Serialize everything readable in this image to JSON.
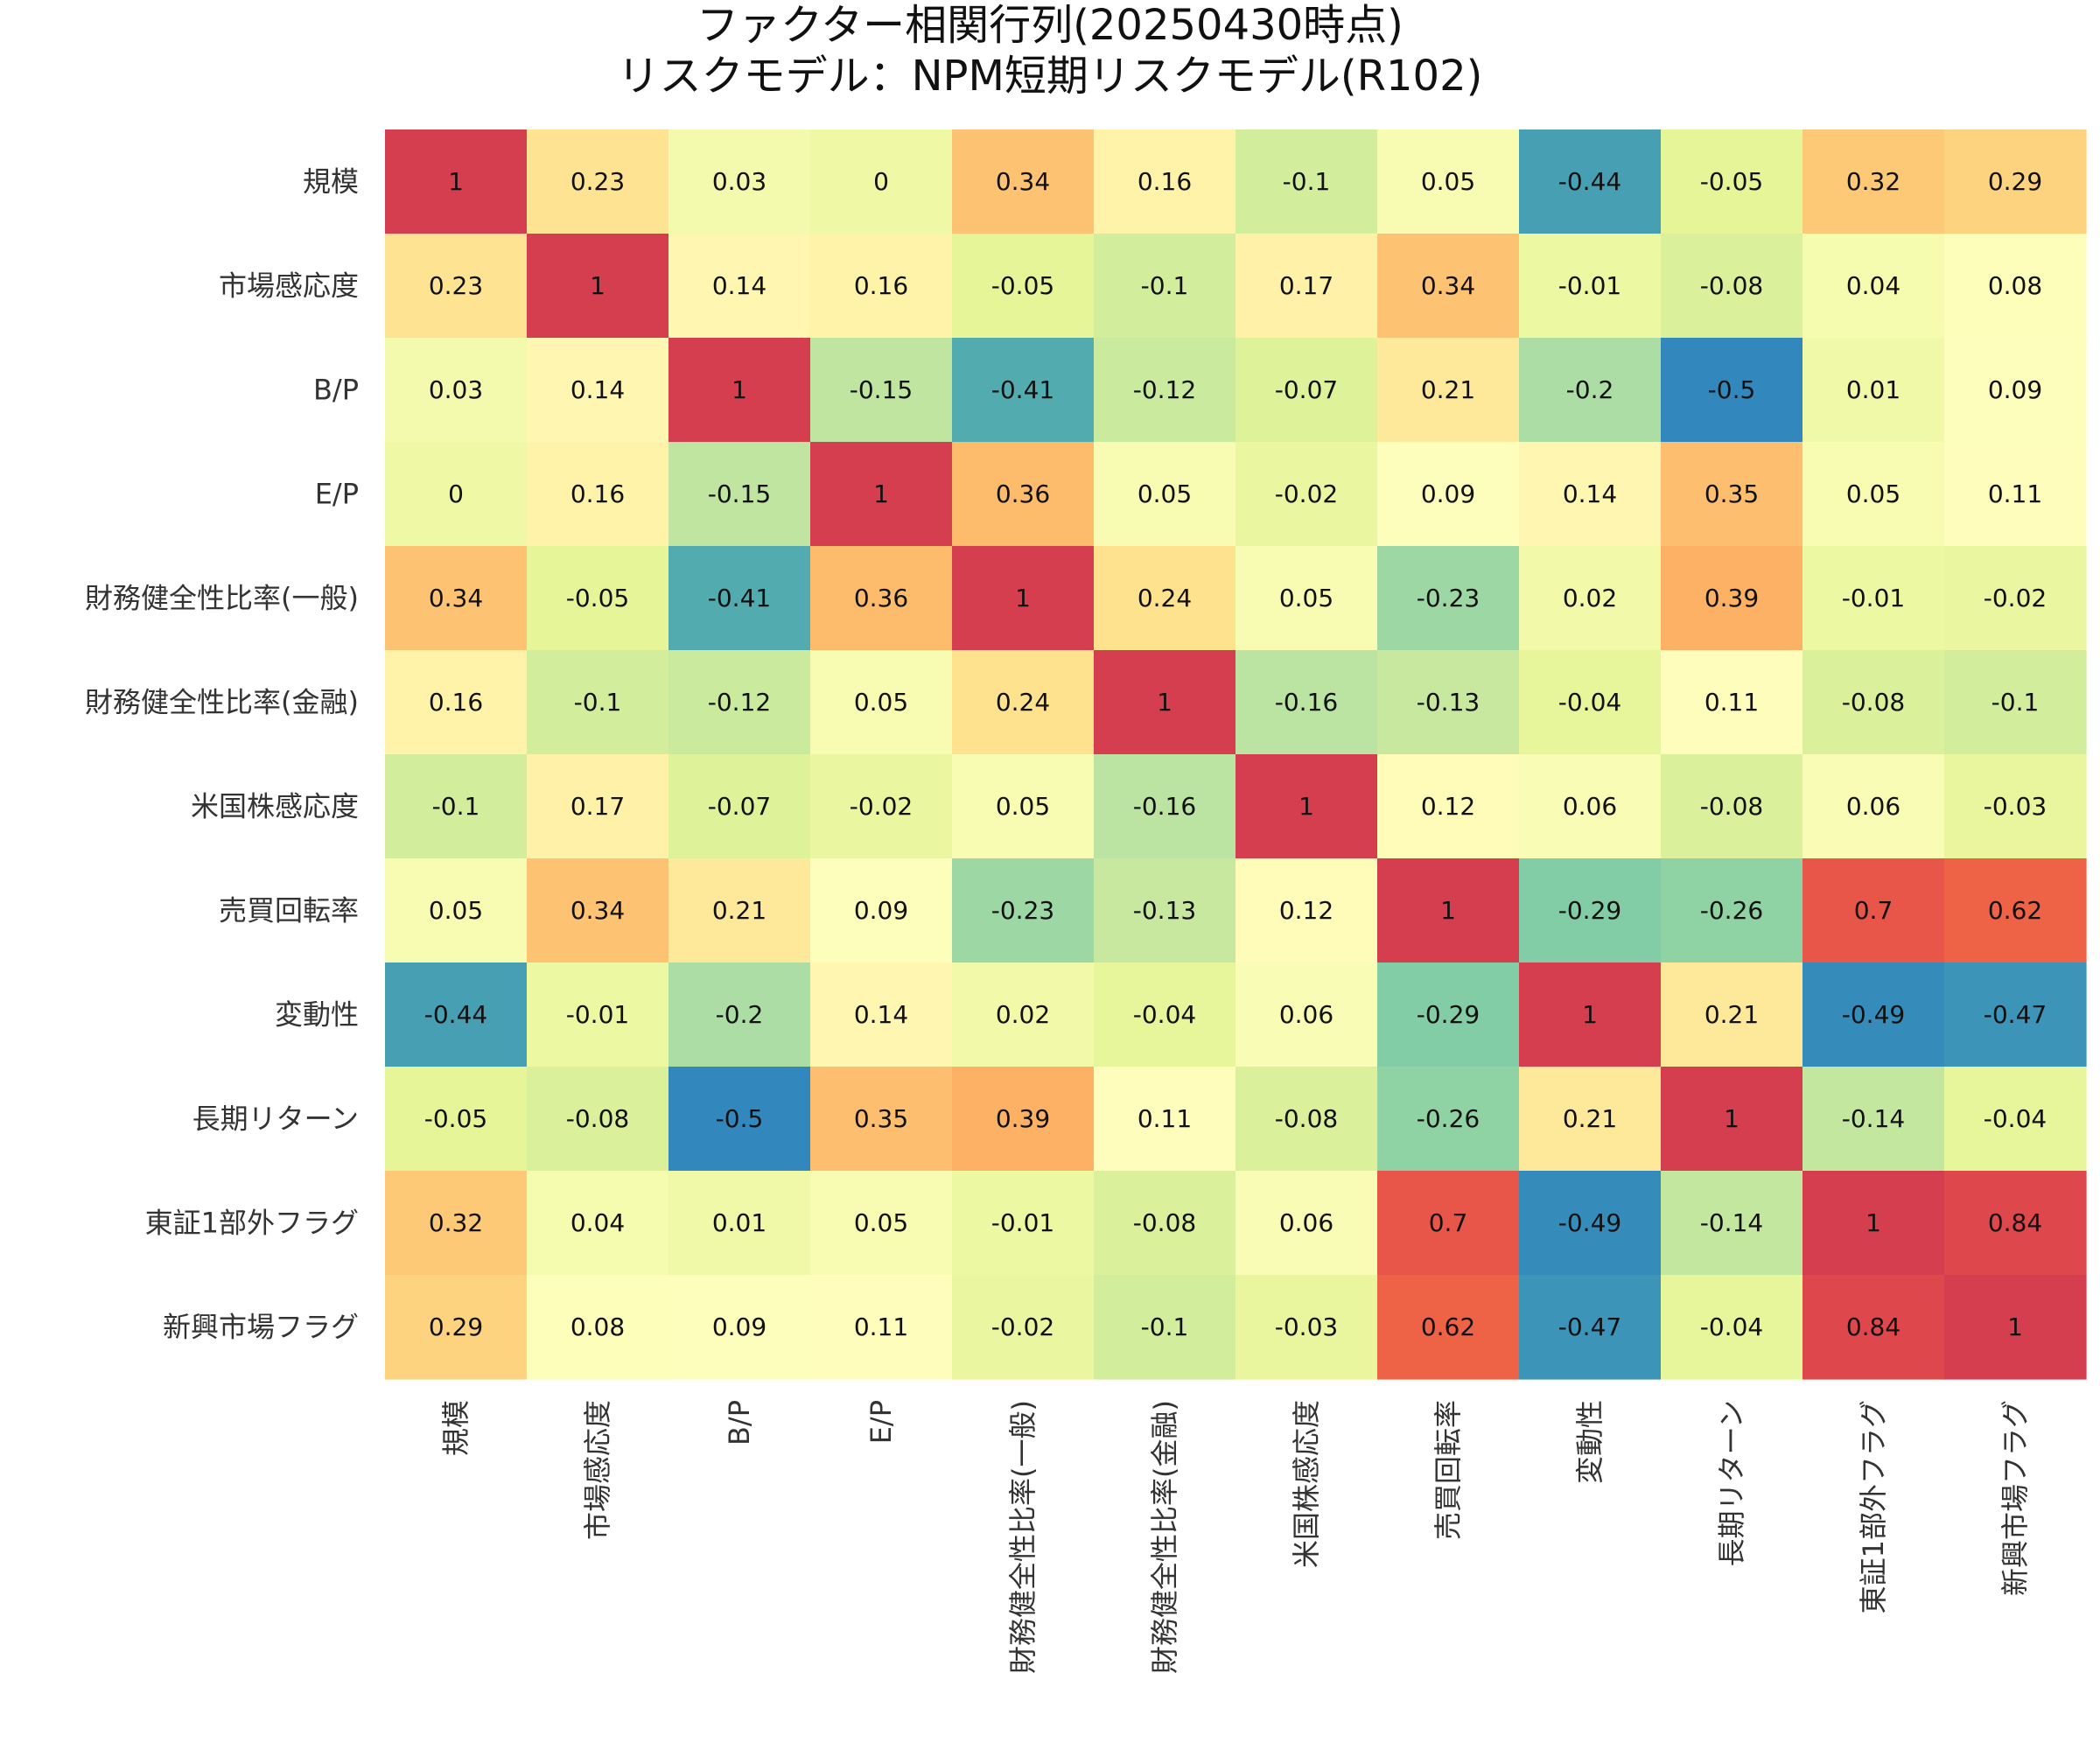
{
  "chart_data": {
    "type": "heatmap",
    "title_lines": [
      "ファクター相関行列(20250430時点)",
      "リスクモデル：NPM短期リスクモデル(R102)"
    ],
    "row_labels": [
      "規模",
      "市場感応度",
      "B/P",
      "E/P",
      "財務健全性比率(一般)",
      "財務健全性比率(金融)",
      "米国株感応度",
      "売買回転率",
      "変動性",
      "長期リターン",
      "東証1部外フラグ",
      "新興市場フラグ"
    ],
    "col_labels": [
      "規模",
      "市場感応度",
      "B/P",
      "E/P",
      "財務健全性比率(一般)",
      "財務健全性比率(金融)",
      "米国株感応度",
      "売買回転率",
      "変動性",
      "長期リターン",
      "東証1部外フラグ",
      "新興市場フラグ"
    ],
    "values": [
      [
        1,
        0.23,
        0.03,
        0,
        0.34,
        0.16,
        -0.1,
        0.05,
        -0.44,
        -0.05,
        0.32,
        0.29
      ],
      [
        0.23,
        1,
        0.14,
        0.16,
        -0.05,
        -0.1,
        0.17,
        0.34,
        -0.01,
        -0.08,
        0.04,
        0.08
      ],
      [
        0.03,
        0.14,
        1,
        -0.15,
        -0.41,
        -0.12,
        -0.07,
        0.21,
        -0.2,
        -0.5,
        0.01,
        0.09
      ],
      [
        0,
        0.16,
        -0.15,
        1,
        0.36,
        0.05,
        -0.02,
        0.09,
        0.14,
        0.35,
        0.05,
        0.11
      ],
      [
        0.34,
        -0.05,
        -0.41,
        0.36,
        1,
        0.24,
        0.05,
        -0.23,
        0.02,
        0.39,
        -0.01,
        -0.02
      ],
      [
        0.16,
        -0.1,
        -0.12,
        0.05,
        0.24,
        1,
        -0.16,
        -0.13,
        -0.04,
        0.11,
        -0.08,
        -0.1
      ],
      [
        -0.1,
        0.17,
        -0.07,
        -0.02,
        0.05,
        -0.16,
        1,
        0.12,
        0.06,
        -0.08,
        0.06,
        -0.03
      ],
      [
        0.05,
        0.34,
        0.21,
        0.09,
        -0.23,
        -0.13,
        0.12,
        1,
        -0.29,
        -0.26,
        0.7,
        0.62
      ],
      [
        -0.44,
        -0.01,
        -0.2,
        0.14,
        0.02,
        -0.04,
        0.06,
        -0.29,
        1,
        0.21,
        -0.49,
        -0.47
      ],
      [
        -0.05,
        -0.08,
        -0.5,
        0.35,
        0.39,
        0.11,
        -0.08,
        -0.26,
        0.21,
        1,
        -0.14,
        -0.04
      ],
      [
        0.32,
        0.04,
        0.01,
        0.05,
        -0.01,
        -0.08,
        0.06,
        0.7,
        -0.49,
        -0.14,
        1,
        0.84
      ],
      [
        0.29,
        0.08,
        0.09,
        0.11,
        -0.02,
        -0.1,
        -0.03,
        0.62,
        -0.47,
        -0.04,
        0.84,
        1
      ]
    ],
    "colormap": "Spectral_r",
    "value_range": [
      -0.5,
      1
    ],
    "grid": false,
    "colorbar": false
  }
}
